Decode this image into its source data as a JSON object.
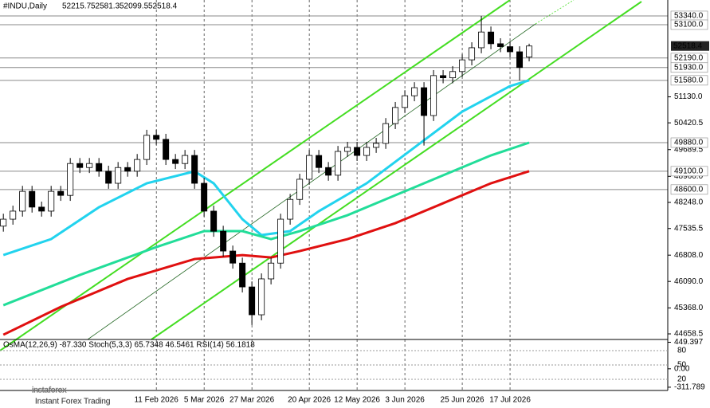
{
  "chart_data": {
    "type": "candlestick",
    "symbol": "#INDU,Daily",
    "categories": [
      null,
      null,
      null,
      null,
      null,
      null,
      null,
      null,
      null,
      null,
      null,
      null,
      null,
      null,
      null,
      null,
      "11 Feb 2026",
      null,
      null,
      null,
      null,
      "5 Mar 2026",
      null,
      null,
      null,
      null,
      "27 Mar 2026",
      null,
      null,
      null,
      null,
      null,
      "20 Apr 2026",
      null,
      null,
      null,
      null,
      "12 May 2026",
      null,
      null,
      null,
      null,
      "3 Jun 2026",
      null,
      null,
      null,
      null,
      null,
      "25 Jun 2026",
      null,
      null,
      null,
      null,
      "17 Jul 2026",
      null,
      null
    ],
    "open": [
      47600,
      47790,
      48010,
      48550,
      48120,
      48010,
      48550,
      48440,
      49310,
      49200,
      49310,
      49100,
      48770,
      49200,
      49100,
      49420,
      50080,
      49970,
      49420,
      49310,
      49530,
      48770,
      48010,
      47460,
      46920,
      46590,
      45940,
      45180,
      46160,
      46590,
      47790,
      48330,
      48880,
      49530,
      49200,
      48990,
      49640,
      49750,
      49530,
      49750,
      49860,
      50400,
      50840,
      51160,
      51380,
      50620,
      51710,
      51650,
      51820,
      52140,
      52470,
      52900,
      52580,
      52500,
      52360,
      52215.7
    ],
    "high": [
      47940,
      48160,
      48700,
      48700,
      48270,
      48700,
      48700,
      49460,
      49460,
      49460,
      49460,
      49250,
      49350,
      49350,
      49570,
      50230,
      50230,
      50120,
      49570,
      49680,
      49680,
      48920,
      48160,
      47610,
      47070,
      46740,
      46090,
      46310,
      46740,
      47940,
      48480,
      49030,
      49680,
      49680,
      49350,
      49790,
      49900,
      49900,
      49900,
      50010,
      50550,
      50990,
      51310,
      51530,
      51530,
      51860,
      51860,
      51970,
      52290,
      52620,
      53340,
      53050,
      52730,
      52650,
      52510,
      52581.3
    ],
    "low": [
      47450,
      47640,
      47860,
      47970,
      47860,
      47860,
      48290,
      48290,
      49050,
      49050,
      48950,
      48620,
      48620,
      48950,
      48950,
      49270,
      49820,
      49270,
      49160,
      49160,
      48620,
      47860,
      47310,
      46770,
      46440,
      45790,
      44900,
      45030,
      46010,
      46440,
      47640,
      48180,
      48730,
      49050,
      48840,
      48840,
      49490,
      49380,
      49380,
      49600,
      49710,
      50250,
      50690,
      51010,
      49800,
      50470,
      51500,
      51500,
      51670,
      51990,
      52320,
      52430,
      52350,
      52210,
      51580,
      52099.5
    ],
    "close": [
      47790,
      48010,
      48550,
      48120,
      48010,
      48550,
      48440,
      49310,
      49200,
      49310,
      49100,
      48770,
      49200,
      49100,
      49420,
      50080,
      49970,
      49420,
      49310,
      49530,
      48770,
      48010,
      47460,
      46920,
      46590,
      45940,
      45180,
      46160,
      46590,
      47790,
      48330,
      48880,
      49530,
      49200,
      48990,
      49640,
      49750,
      49530,
      49750,
      49860,
      50400,
      50840,
      51160,
      51380,
      50620,
      51710,
      51650,
      51820,
      52140,
      52470,
      52900,
      52580,
      52500,
      52360,
      51930,
      52518.4
    ],
    "colors": {
      "up": "#ffffff",
      "down": "#000000",
      "outline": "#000000"
    },
    "moving_averages": [
      {
        "color": "#22d3ee",
        "x": [
          0,
          5,
          10,
          15,
          20,
          22,
          25,
          27,
          30,
          33,
          38,
          43,
          48,
          53,
          55
        ],
        "values": [
          46810,
          47246,
          48116,
          48769,
          49096,
          48769,
          47790,
          47355,
          47464,
          48008,
          48769,
          49748,
          50728,
          51424,
          51580
        ]
      },
      {
        "color": "#22dd99",
        "x": [
          0,
          8,
          16,
          21,
          25,
          28,
          31,
          36,
          41,
          46,
          51,
          55
        ],
        "values": [
          45440,
          46267,
          47029,
          47464,
          47464,
          47246,
          47464,
          47899,
          48443,
          48987,
          49531,
          49880
        ]
      },
      {
        "color": "#e01010",
        "x": [
          0,
          6,
          13,
          20,
          25,
          28,
          31,
          36,
          41,
          46,
          51,
          55
        ],
        "values": [
          44635,
          45396,
          46158,
          46702,
          46810,
          46745,
          46920,
          47246,
          47681,
          48225,
          48769,
          49100
        ]
      }
    ],
    "xlim": [
      -0.35,
      69.5
    ],
    "ylim": [
      44506,
      53774
    ],
    "yticks": [
      {
        "value": 51130,
        "label": "51130.0"
      },
      {
        "value": 50420.5,
        "label": "50420.5"
      },
      {
        "value": 49689.5,
        "label": "49689.5"
      },
      {
        "value": 48960,
        "label": "48960.0"
      },
      {
        "value": 48248,
        "label": "48248.0"
      },
      {
        "value": 47535.5,
        "label": "47535.5"
      },
      {
        "value": 46808,
        "label": "46808.0"
      },
      {
        "value": 46090,
        "label": "46090.0"
      },
      {
        "value": 45368,
        "label": "45368.0"
      },
      {
        "value": 44658.5,
        "label": "44658.5"
      }
    ],
    "levels": [
      {
        "value": 53340,
        "label": "53340.0"
      },
      {
        "value": 53100,
        "label": "53100.0"
      },
      {
        "value": 52190,
        "label": "52190.0"
      },
      {
        "value": 51930,
        "label": "51930.0"
      },
      {
        "value": 51580,
        "label": "51580.0"
      },
      {
        "value": 49880,
        "label": "49880.0"
      },
      {
        "value": 49100,
        "label": "49100.0"
      },
      {
        "value": 48600,
        "label": "48600.0"
      }
    ],
    "indicator": {
      "title": "OsMA(12,26,9) -87.330 Stoch(5,3,3) 65.7348 46.5461 RSI(14) 56.1818",
      "ylim": [
        -340,
        470
      ],
      "yticks": [
        449.397,
        {
          "value": 0,
          "label": "0.00"
        },
        -311.789
      ],
      "levels_ylim": [
        0,
        100
      ],
      "levels": [
        80,
        50,
        20
      ]
    }
  },
  "watermark": {
    "brand": "instaforex",
    "tagline": "Instant Forex Trading"
  }
}
